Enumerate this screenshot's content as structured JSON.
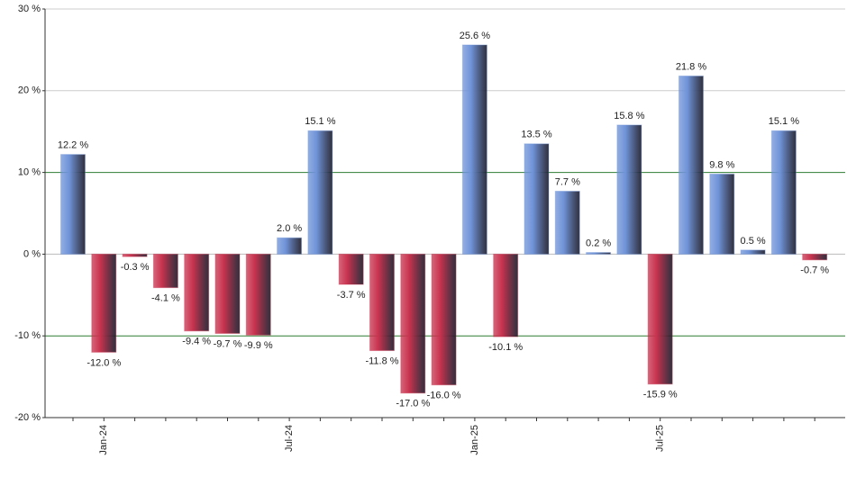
{
  "chart_data": {
    "type": "bar",
    "categories": [
      null,
      "Jan-24",
      null,
      null,
      null,
      null,
      null,
      "Jul-24",
      null,
      null,
      null,
      null,
      null,
      "Jan-25",
      null,
      null,
      null,
      null,
      null,
      "Jul-25",
      null,
      null,
      null,
      null,
      null
    ],
    "values": [
      12.2,
      -12.0,
      -0.3,
      -4.1,
      -9.4,
      -9.7,
      -9.9,
      2.0,
      15.1,
      -3.7,
      -11.8,
      -17.0,
      -16.0,
      25.6,
      -10.1,
      13.5,
      7.7,
      0.2,
      15.8,
      -15.9,
      21.8,
      9.8,
      0.5,
      15.1,
      -0.7
    ],
    "value_labels": [
      "12.2 %",
      "-12.0 %",
      "-0.3 %",
      "-4.1 %",
      "-9.4 %",
      "-9.7 %",
      "-9.9 %",
      "2.0 %",
      "15.1 %",
      "-3.7 %",
      "-11.8 %",
      "-17.0 %",
      "-16.0 %",
      "25.6 %",
      "-10.1 %",
      "13.5 %",
      "7.7 %",
      "0.2 %",
      "15.8 %",
      "-15.9 %",
      "21.8 %",
      "9.8 %",
      "0.5 %",
      "15.1 %",
      "-0.7 %"
    ],
    "positive_color": "#6f93d8",
    "negative_color": "#c8324e",
    "ylim": [
      -20,
      30
    ],
    "yticks": [
      {
        "value": -20,
        "label": "-20 %"
      },
      {
        "value": -10,
        "label": "-10 %"
      },
      {
        "value": 0,
        "label": "0 %"
      },
      {
        "value": 10,
        "label": "10 %"
      },
      {
        "value": 20,
        "label": "20 %"
      },
      {
        "value": 30,
        "label": "30 %"
      }
    ],
    "grid": true,
    "grid_colors": [
      "#bbbbbb",
      "#2e7d32",
      "#bbbbbb",
      "#2e7d32",
      "#cccccc",
      "#cccccc"
    ]
  }
}
